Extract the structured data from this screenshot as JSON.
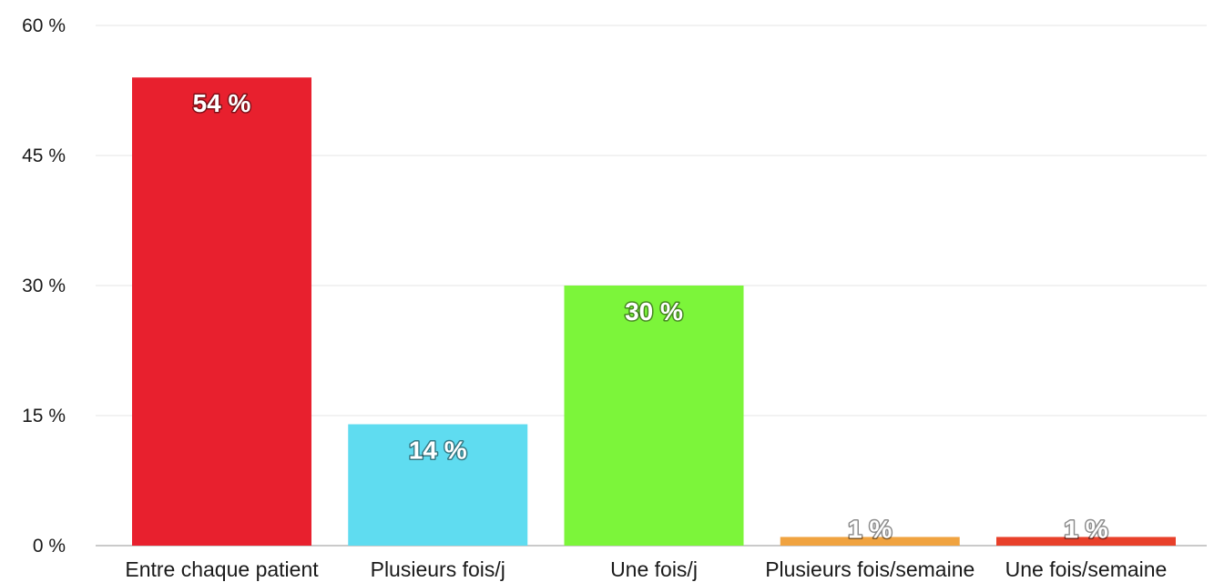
{
  "chart_data": {
    "type": "bar",
    "categories": [
      "Entre chaque patient",
      "Plusieurs fois/j",
      "Une fois/j",
      "Plusieurs fois/semaine",
      "Une fois/semaine"
    ],
    "values": [
      54,
      14,
      30,
      1,
      1
    ],
    "value_labels": [
      "54 %",
      "14 %",
      "30 %",
      "1 %",
      "1 %"
    ],
    "colors": [
      "#e8202e",
      "#5fdcf0",
      "#7cf53a",
      "#f0a340",
      "#e8402a"
    ],
    "yticks": [
      0,
      15,
      30,
      45,
      60
    ],
    "ytick_labels": [
      "0 %",
      "15 %",
      "30 %",
      "45 %",
      "60 %"
    ],
    "ylim": [
      0,
      60
    ],
    "grid": true,
    "title": "",
    "xlabel": "",
    "ylabel": ""
  }
}
